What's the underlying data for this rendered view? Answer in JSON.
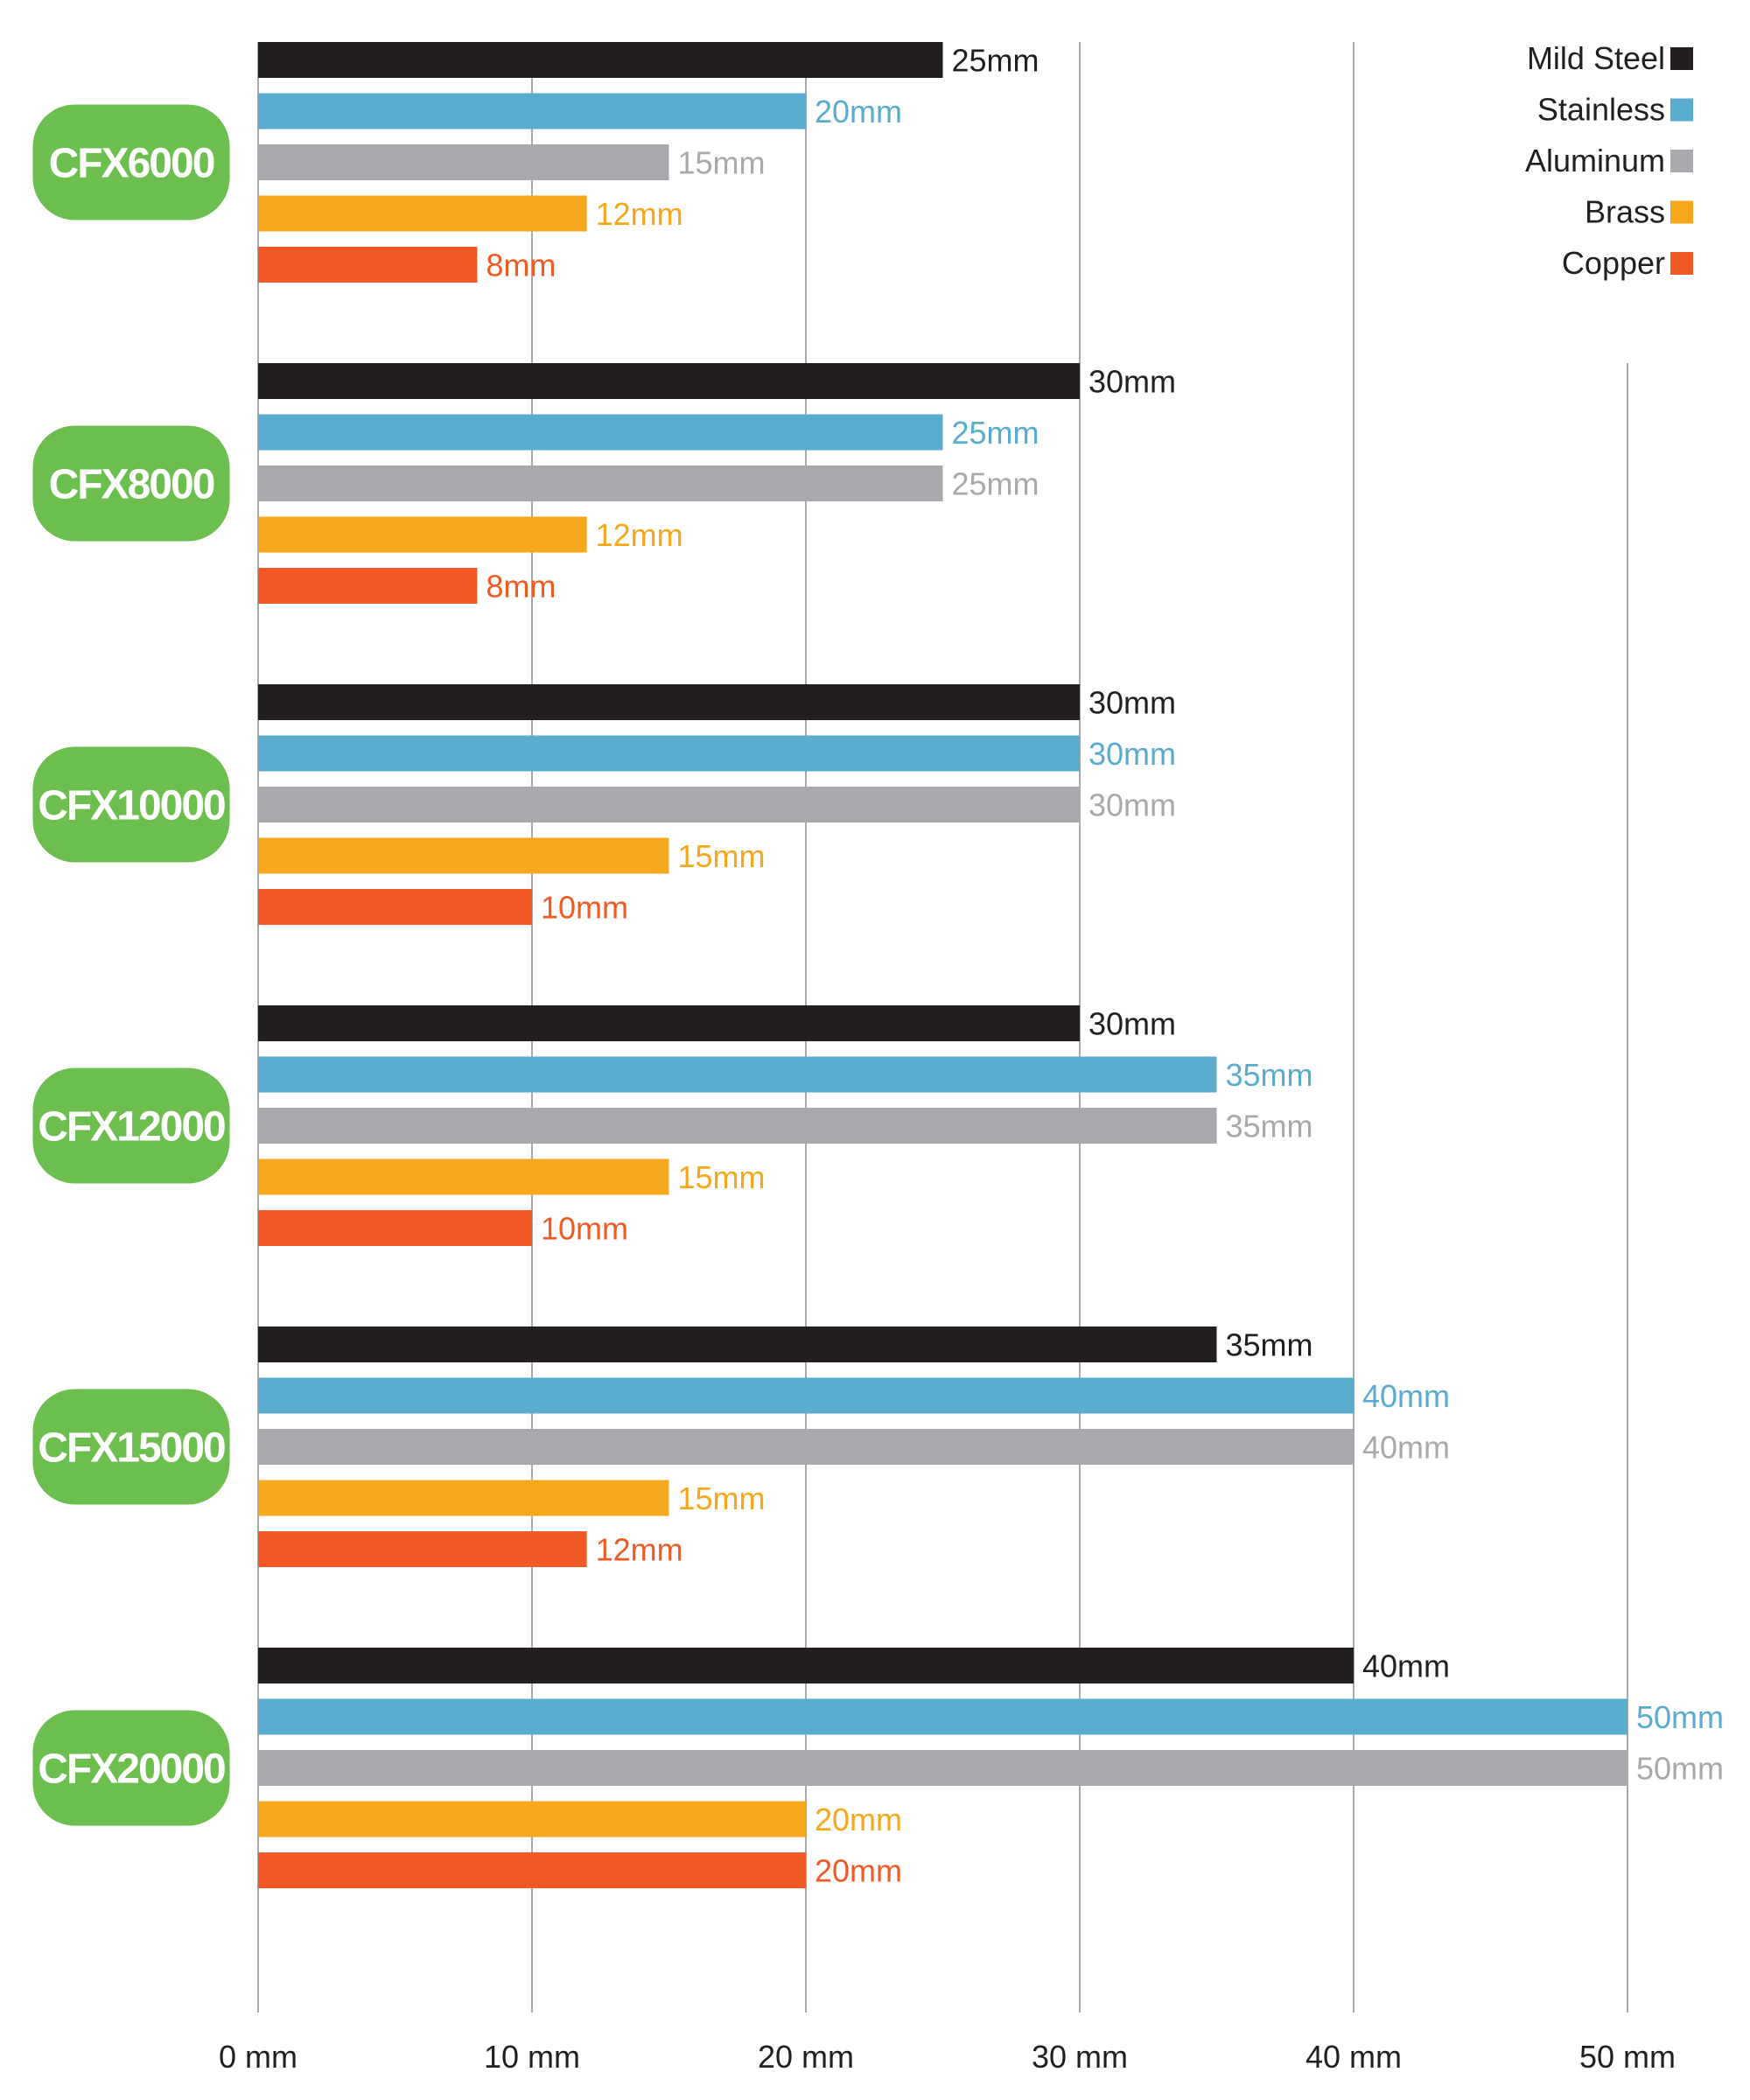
{
  "chart_data": {
    "type": "bar",
    "orientation": "horizontal",
    "unit": "mm",
    "xlim": [
      0,
      50
    ],
    "x_ticks": [
      0,
      10,
      20,
      30,
      40,
      50
    ],
    "x_tick_labels": [
      "0 mm",
      "10 mm",
      "20 mm",
      "30 mm",
      "40 mm",
      "50 mm"
    ],
    "grid": true,
    "legend_position": "top-right",
    "categories": [
      "CFX6000",
      "CFX8000",
      "CFX10000",
      "CFX12000",
      "CFX15000",
      "CFX20000"
    ],
    "category_badge_color": "#6cbf4f",
    "series": [
      {
        "name": "Mild Steel",
        "color": "#231f20",
        "label_color": "#231f20",
        "values": [
          25,
          30,
          30,
          30,
          35,
          40
        ],
        "labels": [
          "25mm",
          "30mm",
          "30mm",
          "30mm",
          "35mm",
          "40mm"
        ]
      },
      {
        "name": "Stainless",
        "color": "#5aaccf",
        "label_color": "#5aaccf",
        "values": [
          20,
          25,
          30,
          35,
          40,
          50
        ],
        "labels": [
          "20mm",
          "25mm",
          "30mm",
          "35mm",
          "40mm",
          "50mm"
        ]
      },
      {
        "name": "Aluminum",
        "color": "#a7a9ac",
        "label_color": "#a7a9ac",
        "values": [
          15,
          25,
          30,
          35,
          40,
          50
        ],
        "labels": [
          "15mm",
          "25mm",
          "30mm",
          "35mm",
          "40mm",
          "50mm"
        ]
      },
      {
        "name": "Brass",
        "color": "#f6a71c",
        "label_color": "#f6a71c",
        "values": [
          12,
          12,
          15,
          15,
          15,
          20
        ],
        "labels": [
          "12mm",
          "12mm",
          "15mm",
          "15mm",
          "15mm",
          "20mm"
        ]
      },
      {
        "name": "Copper",
        "color": "#f15a24",
        "label_color": "#f15a24",
        "values": [
          8,
          8,
          10,
          10,
          12,
          20
        ],
        "labels": [
          "8mm",
          "8mm",
          "10mm",
          "10mm",
          "12mm",
          "20mm"
        ]
      }
    ]
  }
}
